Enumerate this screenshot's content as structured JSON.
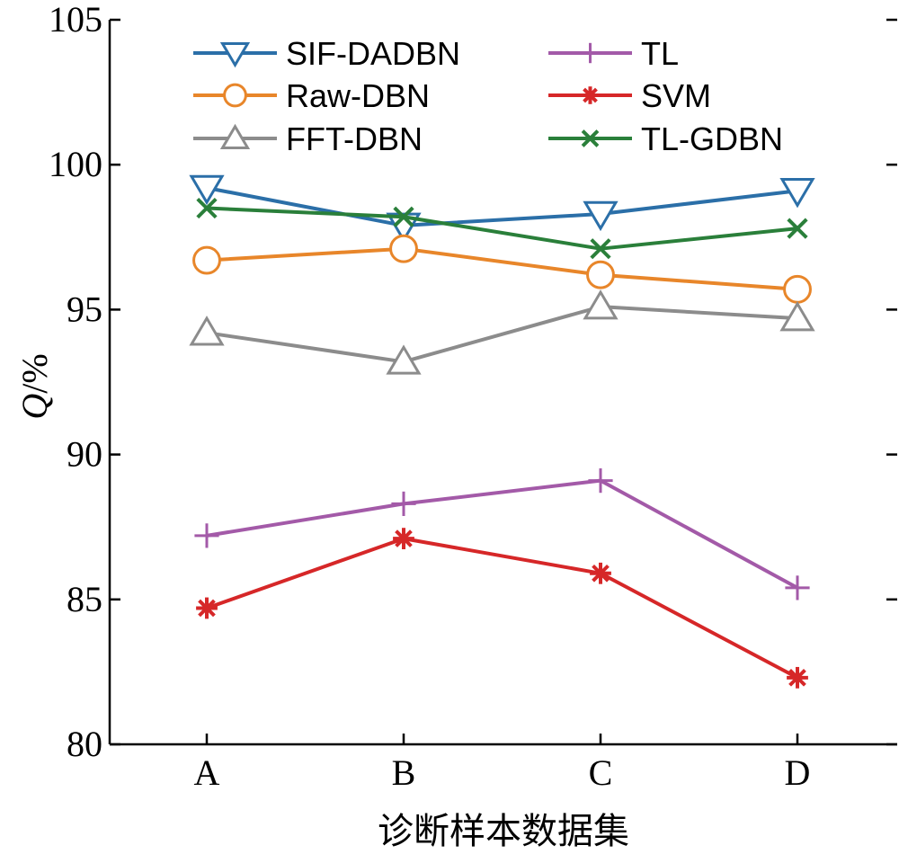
{
  "chart_data": {
    "type": "line",
    "categories": [
      "A",
      "B",
      "C",
      "D"
    ],
    "xlabel": "诊断样本数据集",
    "ylabel": "Q/%",
    "ylabel_italic_part": "Q",
    "ylabel_rest": "/%",
    "ylim": [
      80,
      105
    ],
    "yticks": [
      80,
      85,
      90,
      95,
      100,
      105
    ],
    "grid": false,
    "legend_position": "top",
    "series": [
      {
        "name": "SIF-DADBN",
        "values": [
          99.2,
          97.9,
          98.3,
          99.1
        ],
        "color": "#2b6fa8",
        "marker": "triangle-down"
      },
      {
        "name": "Raw-DBN",
        "values": [
          96.7,
          97.1,
          96.2,
          95.7
        ],
        "color": "#e8862a",
        "marker": "circle"
      },
      {
        "name": "FFT-DBN",
        "values": [
          94.2,
          93.2,
          95.1,
          94.7
        ],
        "color": "#8c8c8c",
        "marker": "triangle-up"
      },
      {
        "name": "TL",
        "values": [
          87.2,
          88.3,
          89.1,
          85.4
        ],
        "color": "#a35aa8",
        "marker": "plus"
      },
      {
        "name": "SVM",
        "values": [
          84.7,
          87.1,
          85.9,
          82.3
        ],
        "color": "#d62728",
        "marker": "asterisk"
      },
      {
        "name": "TL-GDBN",
        "values": [
          98.5,
          98.2,
          97.1,
          97.8
        ],
        "color": "#2a7f3a",
        "marker": "x"
      }
    ]
  }
}
